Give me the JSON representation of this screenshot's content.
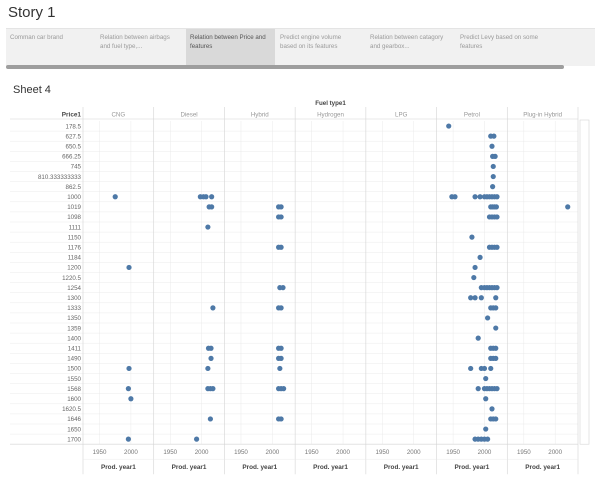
{
  "story": {
    "title": "Story 1",
    "points": [
      {
        "label": "Comman car brand",
        "active": false
      },
      {
        "label": "Relation between airbags and fuel type,...",
        "active": false
      },
      {
        "label": "Relation between Price and features",
        "active": true
      },
      {
        "label": "Predict engine volume based on its features",
        "active": false
      },
      {
        "label": "Relation between catagory and gearbox...",
        "active": false
      },
      {
        "label": "Predict Levy based on some features",
        "active": false
      }
    ]
  },
  "sheet": {
    "title": "Sheet 4"
  },
  "colors": {
    "dot": "#4e79a7",
    "grid": "#e6e6e6",
    "border": "#d4d4d4"
  },
  "chart_data": {
    "type": "scatter",
    "column_field": "Fuel type1",
    "row_field": "Price1",
    "x_field": "Prod. year1",
    "columns": [
      "CNG",
      "Diesel",
      "Hybrid",
      "Hydrogen",
      "LPG",
      "Petrol",
      "Plug-in Hybrid"
    ],
    "x_ticks": [
      1950,
      2000
    ],
    "x_range": [
      1930,
      2030
    ],
    "x_axis_label": "Prod. year1",
    "rows": [
      "178.5",
      "627.5",
      "650.5",
      "666.25",
      "745",
      "810.333333333",
      "862.5",
      "1000",
      "1019",
      "1098",
      "1111",
      "1150",
      "1176",
      "1184",
      "1200",
      "1220.5",
      "1254",
      "1300",
      "1333",
      "1350",
      "1359",
      "1400",
      "1411",
      "1490",
      "1500",
      "1550",
      "1568",
      "1600",
      "1620.5",
      "1646",
      "1650",
      "1700"
    ],
    "points": [
      {
        "row": "178.5",
        "col": "Petrol",
        "x": [
          1943
        ]
      },
      {
        "row": "627.5",
        "col": "Petrol",
        "x": [
          2010,
          2015
        ]
      },
      {
        "row": "650.5",
        "col": "Petrol",
        "x": [
          2012
        ]
      },
      {
        "row": "666.25",
        "col": "Petrol",
        "x": [
          2013,
          2017
        ]
      },
      {
        "row": "745",
        "col": "Petrol",
        "x": [
          2014
        ]
      },
      {
        "row": "810.333333333",
        "col": "Petrol",
        "x": [
          2014
        ]
      },
      {
        "row": "862.5",
        "col": "Petrol",
        "x": [
          2013
        ]
      },
      {
        "row": "1000",
        "col": "CNG",
        "x": [
          1975
        ]
      },
      {
        "row": "1000",
        "col": "Diesel",
        "x": [
          1998,
          2003,
          2007,
          2016
        ]
      },
      {
        "row": "1000",
        "col": "Petrol",
        "x": [
          1948,
          1953,
          1985,
          1993,
          2000,
          2004,
          2008,
          2012,
          2016,
          2020
        ]
      },
      {
        "row": "1019",
        "col": "Diesel",
        "x": [
          2012,
          2016
        ]
      },
      {
        "row": "1019",
        "col": "Hybrid",
        "x": [
          2010,
          2014
        ]
      },
      {
        "row": "1019",
        "col": "Petrol",
        "x": [
          2010,
          2013,
          2016,
          2019
        ]
      },
      {
        "row": "1019",
        "col": "Plug-in Hybrid",
        "x": [
          2020
        ]
      },
      {
        "row": "1098",
        "col": "Hybrid",
        "x": [
          2010,
          2014
        ]
      },
      {
        "row": "1098",
        "col": "Petrol",
        "x": [
          2008,
          2012,
          2016,
          2020
        ]
      },
      {
        "row": "1111",
        "col": "Diesel",
        "x": [
          2010
        ]
      },
      {
        "row": "1150",
        "col": "Petrol",
        "x": [
          1980
        ]
      },
      {
        "row": "1176",
        "col": "Hybrid",
        "x": [
          2010,
          2014
        ]
      },
      {
        "row": "1176",
        "col": "Petrol",
        "x": [
          2008,
          2012,
          2016,
          2020
        ]
      },
      {
        "row": "1184",
        "col": "Petrol",
        "x": [
          1993
        ]
      },
      {
        "row": "1200",
        "col": "CNG",
        "x": [
          1997
        ]
      },
      {
        "row": "1200",
        "col": "Petrol",
        "x": [
          1985
        ]
      },
      {
        "row": "1220.5",
        "col": "Petrol",
        "x": [
          1983
        ]
      },
      {
        "row": "1254",
        "col": "Hybrid",
        "x": [
          2012,
          2017
        ]
      },
      {
        "row": "1254",
        "col": "Petrol",
        "x": [
          1995,
          2000,
          2004,
          2008,
          2012,
          2016,
          2020
        ]
      },
      {
        "row": "1300",
        "col": "Petrol",
        "x": [
          1978,
          1985,
          1995,
          2018
        ]
      },
      {
        "row": "1333",
        "col": "Diesel",
        "x": [
          2018
        ]
      },
      {
        "row": "1333",
        "col": "Hybrid",
        "x": [
          2010,
          2014
        ]
      },
      {
        "row": "1333",
        "col": "Petrol",
        "x": [
          2010,
          2014,
          2018
        ]
      },
      {
        "row": "1350",
        "col": "Petrol",
        "x": [
          2005
        ]
      },
      {
        "row": "1359",
        "col": "Petrol",
        "x": [
          2018
        ]
      },
      {
        "row": "1400",
        "col": "Petrol",
        "x": [
          1990
        ]
      },
      {
        "row": "1411",
        "col": "Diesel",
        "x": [
          2011,
          2015
        ]
      },
      {
        "row": "1411",
        "col": "Hybrid",
        "x": [
          2010,
          2014
        ]
      },
      {
        "row": "1411",
        "col": "Petrol",
        "x": [
          2010,
          2014,
          2018
        ]
      },
      {
        "row": "1490",
        "col": "Diesel",
        "x": [
          2015
        ]
      },
      {
        "row": "1490",
        "col": "Hybrid",
        "x": [
          2010,
          2014
        ]
      },
      {
        "row": "1490",
        "col": "Petrol",
        "x": [
          2010,
          2014,
          2018
        ]
      },
      {
        "row": "1500",
        "col": "CNG",
        "x": [
          1997
        ]
      },
      {
        "row": "1500",
        "col": "Diesel",
        "x": [
          2010
        ]
      },
      {
        "row": "1500",
        "col": "Hybrid",
        "x": [
          2012
        ]
      },
      {
        "row": "1500",
        "col": "Petrol",
        "x": [
          1978,
          1995,
          2000,
          2010
        ]
      },
      {
        "row": "1550",
        "col": "Petrol",
        "x": [
          2002
        ]
      },
      {
        "row": "1568",
        "col": "CNG",
        "x": [
          1996
        ]
      },
      {
        "row": "1568",
        "col": "Diesel",
        "x": [
          2010,
          2014,
          2018
        ]
      },
      {
        "row": "1568",
        "col": "Hybrid",
        "x": [
          2010,
          2014,
          2018
        ]
      },
      {
        "row": "1568",
        "col": "Petrol",
        "x": [
          1990,
          2000,
          2004,
          2008,
          2012,
          2016,
          2020
        ]
      },
      {
        "row": "1600",
        "col": "CNG",
        "x": [
          2000
        ]
      },
      {
        "row": "1600",
        "col": "Petrol",
        "x": [
          2002
        ]
      },
      {
        "row": "1620.5",
        "col": "Petrol",
        "x": [
          2012
        ]
      },
      {
        "row": "1646",
        "col": "Diesel",
        "x": [
          2014
        ]
      },
      {
        "row": "1646",
        "col": "Hybrid",
        "x": [
          2010,
          2014
        ]
      },
      {
        "row": "1646",
        "col": "Petrol",
        "x": [
          2010,
          2014,
          2018
        ]
      },
      {
        "row": "1650",
        "col": "Petrol",
        "x": [
          2002
        ]
      },
      {
        "row": "1700",
        "col": "CNG",
        "x": [
          1996
        ]
      },
      {
        "row": "1700",
        "col": "Diesel",
        "x": [
          1992
        ]
      },
      {
        "row": "1700",
        "col": "Petrol",
        "x": [
          1985,
          1990,
          1995,
          2000,
          2005
        ]
      }
    ]
  }
}
